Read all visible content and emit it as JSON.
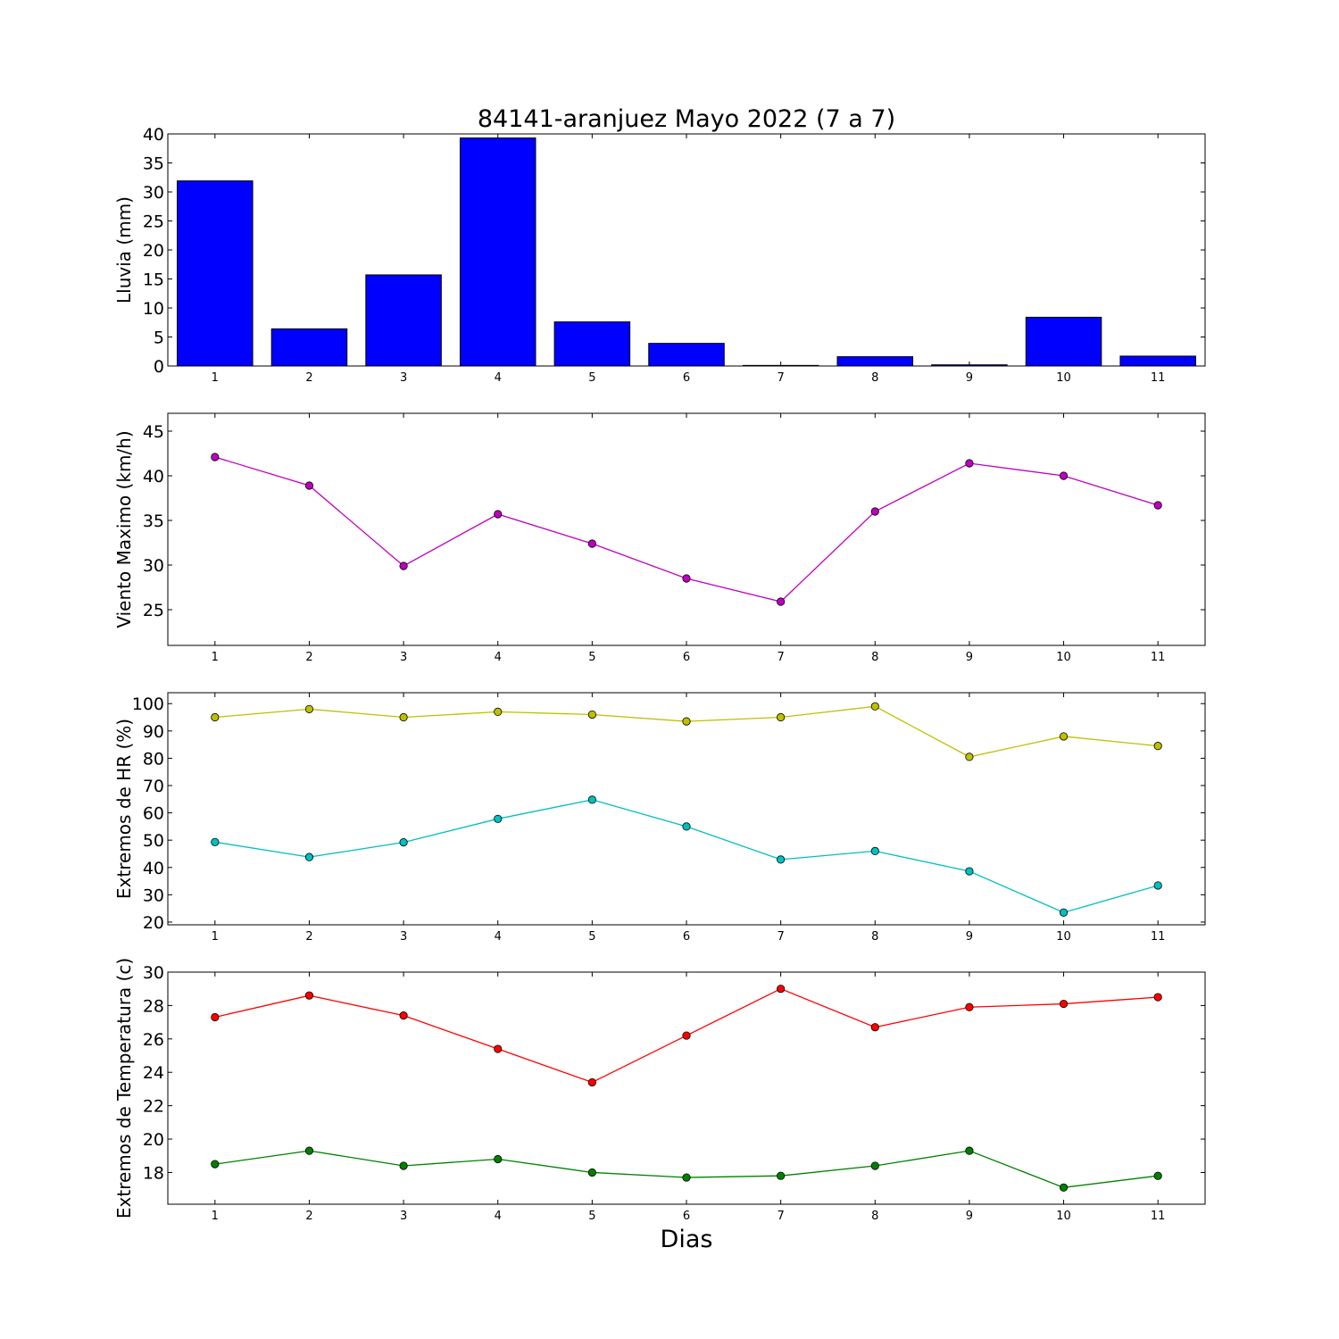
{
  "title": "84141-aranjuez Mayo 2022  (7 a 7)",
  "xlabel": "Dias",
  "chart_data": [
    {
      "type": "bar",
      "ylabel": "Lluvia (mm)",
      "categories": [
        1,
        2,
        3,
        4,
        5,
        6,
        7,
        8,
        9,
        10,
        11
      ],
      "ylim": [
        0,
        40
      ],
      "yticks": [
        0,
        5,
        10,
        15,
        20,
        25,
        30,
        35,
        40
      ],
      "series": [
        {
          "color": "#0000ff",
          "values": [
            31.9,
            6.4,
            15.7,
            39.3,
            7.6,
            3.9,
            0.1,
            1.6,
            0.2,
            8.4,
            1.7
          ]
        }
      ]
    },
    {
      "type": "line",
      "ylabel": "Viento Maximo (km/h)",
      "x": [
        1,
        2,
        3,
        4,
        5,
        6,
        7,
        8,
        9,
        10,
        11
      ],
      "ylim": [
        21,
        47
      ],
      "yticks": [
        25,
        30,
        35,
        40,
        45
      ],
      "series": [
        {
          "color": "#bf00bf",
          "values": [
            42.1,
            38.9,
            29.9,
            35.7,
            32.4,
            28.5,
            25.9,
            36.0,
            41.4,
            40.0,
            36.7
          ]
        }
      ]
    },
    {
      "type": "line",
      "ylabel": "Extremos de HR (%)",
      "x": [
        1,
        2,
        3,
        4,
        5,
        6,
        7,
        8,
        9,
        10,
        11
      ],
      "ylim": [
        19,
        104
      ],
      "yticks": [
        20,
        30,
        40,
        50,
        60,
        70,
        80,
        90,
        100
      ],
      "series": [
        {
          "color": "#bfbf00",
          "values": [
            95,
            98,
            95,
            97,
            96,
            93.5,
            95,
            99,
            80.5,
            88,
            84.5
          ]
        },
        {
          "color": "#00bfbf",
          "values": [
            49.3,
            43.8,
            49.2,
            57.8,
            64.8,
            55,
            42.9,
            46,
            38.6,
            23.5,
            33.4
          ]
        }
      ]
    },
    {
      "type": "line",
      "ylabel": "Extremos de Temperatura (c)",
      "x": [
        1,
        2,
        3,
        4,
        5,
        6,
        7,
        8,
        9,
        10,
        11
      ],
      "ylim": [
        16.1,
        30
      ],
      "yticks": [
        18,
        20,
        22,
        24,
        26,
        28,
        30
      ],
      "series": [
        {
          "color": "#ff0000",
          "values": [
            27.3,
            28.6,
            27.4,
            25.4,
            23.4,
            26.2,
            29.0,
            26.7,
            27.9,
            28.1,
            28.5
          ]
        },
        {
          "color": "#008000",
          "values": [
            18.5,
            19.3,
            18.4,
            18.8,
            18.0,
            17.7,
            17.8,
            18.4,
            19.3,
            17.1,
            17.8
          ]
        }
      ]
    }
  ]
}
